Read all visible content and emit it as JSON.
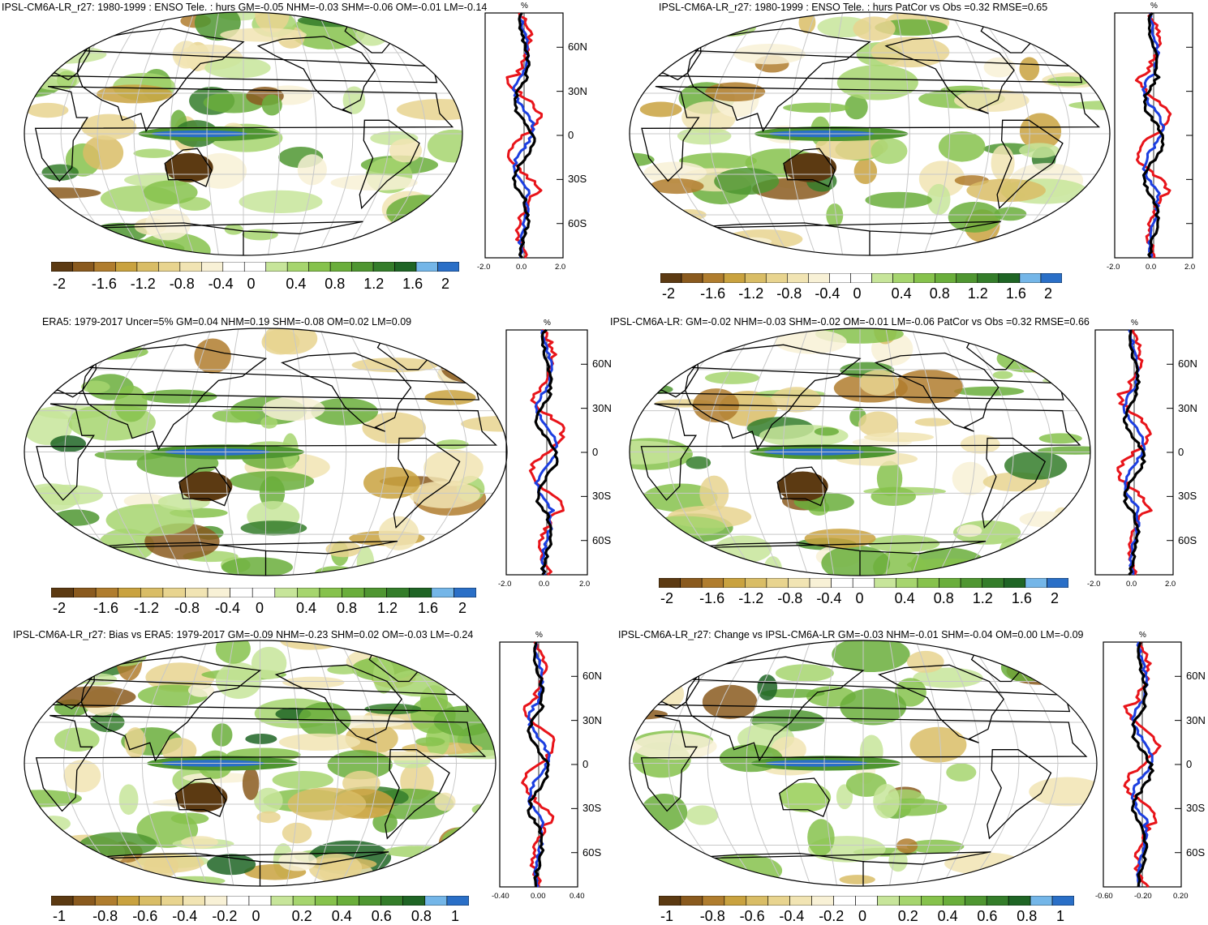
{
  "colors": {
    "palette": [
      "#5c3a12",
      "#8a5a1e",
      "#b07d2e",
      "#c9a23f",
      "#d9bd66",
      "#e8d48f",
      "#f1e4b3",
      "#f8f1d6",
      "#ffffff",
      "#ffffff",
      "#c7e59a",
      "#a6d56e",
      "#86c24c",
      "#6aae3b",
      "#4f9631",
      "#347d2a",
      "#1f6525",
      "#74b6e8",
      "#2a6fc7"
    ],
    "obs": "#e8141a",
    "model": "#1b3ee0",
    "bias": "#000000",
    "graticule": "#c8c8c8"
  },
  "panels": [
    {
      "id": "model",
      "title": "IPSL-CM6A-LR_r27: 1980-1999 : ENSO Tele. : hurs GM=-0.05 NHM=-0.03 SHM=-0.06 OM=-0.01 LM=-0.14",
      "colorbar_labels": [
        "-2",
        "-1.6",
        "-1.2",
        "-0.8",
        "-0.4",
        "0",
        "0.4",
        "0.8",
        "1.2",
        "1.6",
        "2"
      ],
      "profile": {
        "unit": "%",
        "x_ticks": [
          "-2.0",
          "0.0",
          "2.0"
        ],
        "y_ticks": [
          "60N",
          "30N",
          "0",
          "30S",
          "60S"
        ]
      }
    },
    {
      "id": "patcor-model",
      "title": "IPSL-CM6A-LR_r27: 1980-1999 : ENSO Tele. : hurs PatCor vs Obs =0.32 RMSE=0.65",
      "colorbar_labels": [
        "-2",
        "-1.6",
        "-1.2",
        "-0.8",
        "-0.4",
        "0",
        "0.4",
        "0.8",
        "1.2",
        "1.6",
        "2"
      ],
      "profile": {
        "unit": "%",
        "x_ticks": [
          "-2.0",
          "0.0",
          "2.0"
        ],
        "y_ticks": []
      }
    },
    {
      "id": "obs",
      "title": "ERA5: 1979-2017 Uncer=5% GM=0.04 NHM=0.19 SHM=-0.08 OM=0.02 LM=0.09",
      "colorbar_labels": [
        "-2",
        "-1.6",
        "-1.2",
        "-0.8",
        "-0.4",
        "0",
        "0.4",
        "0.8",
        "1.2",
        "1.6",
        "2"
      ],
      "profile": {
        "unit": "%",
        "x_ticks": [
          "-2.0",
          "0.0",
          "2.0"
        ],
        "y_ticks": [
          "60N",
          "30N",
          "0",
          "30S",
          "60S"
        ]
      }
    },
    {
      "id": "reference",
      "title": "IPSL-CM6A-LR: GM=-0.02 NHM=-0.03 SHM=-0.02 OM=-0.01 LM=-0.06 PatCor vs Obs =0.32 RMSE=0.66",
      "colorbar_labels": [
        "-2",
        "-1.6",
        "-1.2",
        "-0.8",
        "-0.4",
        "0",
        "0.4",
        "0.8",
        "1.2",
        "1.6",
        "2"
      ],
      "profile": {
        "unit": "%",
        "x_ticks": [
          "-2.0",
          "0.0",
          "2.0"
        ],
        "y_ticks": [
          "60N",
          "30N",
          "0",
          "30S",
          "60S"
        ]
      }
    },
    {
      "id": "bias",
      "title": "IPSL-CM6A-LR_r27: Bias vs ERA5: 1979-2017 GM=-0.09 NHM=-0.23 SHM=0.02 OM=-0.03 LM=-0.24",
      "colorbar_labels": [
        "-1",
        "-0.8",
        "-0.6",
        "-0.4",
        "-0.2",
        "0",
        "0.2",
        "0.4",
        "0.6",
        "0.8",
        "1"
      ],
      "profile": {
        "unit": "%",
        "x_ticks": [
          "-0.40",
          "0.00",
          "0.40"
        ],
        "y_ticks": [
          "60N",
          "30N",
          "0",
          "30S",
          "60S"
        ]
      }
    },
    {
      "id": "change",
      "title": "IPSL-CM6A-LR_r27: Change vs IPSL-CM6A-LR GM=-0.03 NHM=-0.01 SHM=-0.04 OM=0.00 LM=-0.09",
      "colorbar_labels": [
        "-1",
        "-0.8",
        "-0.6",
        "-0.4",
        "-0.2",
        "0",
        "0.2",
        "0.4",
        "0.6",
        "0.8",
        "1"
      ],
      "profile": {
        "unit": "%",
        "x_ticks": [
          "-0.60",
          "-0.20",
          "0.20"
        ],
        "y_ticks": [
          "60N",
          "30N",
          "0",
          "30S",
          "60S"
        ]
      }
    }
  ]
}
